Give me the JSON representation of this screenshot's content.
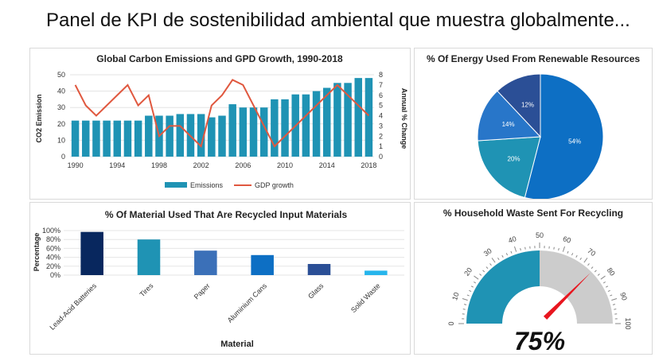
{
  "page": {
    "title": "Panel de KPI de sostenibilidad ambiental que muestra globalmente..."
  },
  "colors": {
    "bar": "#1f93b4",
    "line": "#e0583f",
    "pie": [
      "#0d6fc4",
      "#1f93b4",
      "#2876c9",
      "#2b4f96"
    ],
    "material": [
      "#08275e",
      "#1f93b4",
      "#3b70b8",
      "#0d6fc4",
      "#2b4f96",
      "#26b5ec"
    ],
    "gauge_fill": "#1f93b4",
    "gauge_track": "#cccccc",
    "needle": "#e8161f"
  },
  "chart_data": [
    {
      "id": "emissions",
      "type": "bar",
      "title": "Global Carbon Emissions and GPD Growth, 1990-2018",
      "xlabel": "",
      "ylabel": "CO2 Emission",
      "y2label": "Annual % Change",
      "x": [
        1990,
        1991,
        1992,
        1993,
        1994,
        1995,
        1996,
        1997,
        1998,
        1999,
        2000,
        2001,
        2002,
        2003,
        2004,
        2005,
        2006,
        2007,
        2008,
        2009,
        2010,
        2011,
        2012,
        2013,
        2014,
        2015,
        2016,
        2017,
        2018
      ],
      "xticks": [
        "1990",
        "1994",
        "1998",
        "2002",
        "2006",
        "2010",
        "2014",
        "2018"
      ],
      "ylim": [
        0,
        50
      ],
      "yticks": [
        "0",
        "10",
        "20",
        "30",
        "40",
        "50"
      ],
      "y2lim": [
        0,
        8
      ],
      "y2ticks": [
        "0",
        "1",
        "2",
        "3",
        "4",
        "5",
        "6",
        "7",
        "8"
      ],
      "series": [
        {
          "name": "Emissions",
          "kind": "bar",
          "axis": "left",
          "values": [
            22,
            22,
            22,
            22,
            22,
            22,
            22,
            25,
            25,
            25,
            26,
            26,
            26,
            24,
            25,
            32,
            30,
            30,
            30,
            35,
            35,
            38,
            38,
            40,
            42,
            45,
            45,
            48,
            48
          ]
        },
        {
          "name": "GDP growth",
          "kind": "line",
          "axis": "right",
          "values": [
            7,
            5,
            4,
            5,
            6,
            7,
            5,
            6,
            2,
            3,
            3,
            2,
            1,
            5,
            6,
            7.5,
            7,
            5,
            3,
            1,
            2,
            3,
            4,
            5,
            6,
            7,
            6,
            5,
            4
          ]
        }
      ],
      "legend": [
        "Emissions",
        "GDP growth"
      ],
      "legend_position": "bottom",
      "grid": true
    },
    {
      "id": "renewable",
      "type": "pie",
      "title": "% Of Energy Used From Renewable Resources",
      "values": [
        54,
        20,
        14,
        12
      ],
      "labels": [
        "54%",
        "20%",
        "14%",
        "12%"
      ]
    },
    {
      "id": "material",
      "type": "bar",
      "title": "% Of Material  Used That Are Recycled Input Materials",
      "categories": [
        "Lead-Acid Batteries",
        "Tires",
        "Paper",
        "Aluminium Cans",
        "Glass",
        "Solid Waste"
      ],
      "values": [
        97,
        80,
        55,
        45,
        25,
        10
      ],
      "xlabel": "Material",
      "ylabel": "Percentage",
      "ylim": [
        0,
        100
      ],
      "yticks": [
        "0%",
        "20%",
        "40%",
        "60%",
        "80%",
        "100%"
      ],
      "grid": true
    },
    {
      "id": "household",
      "type": "gauge",
      "title": "% Household Waste Sent For Recycling",
      "value": 75,
      "display": "75%",
      "ticks": [
        "0",
        "10",
        "20",
        "30",
        "40",
        "50",
        "60",
        "70",
        "80",
        "90",
        "100"
      ],
      "range": [
        0,
        100
      ],
      "filled_to": 50
    }
  ]
}
